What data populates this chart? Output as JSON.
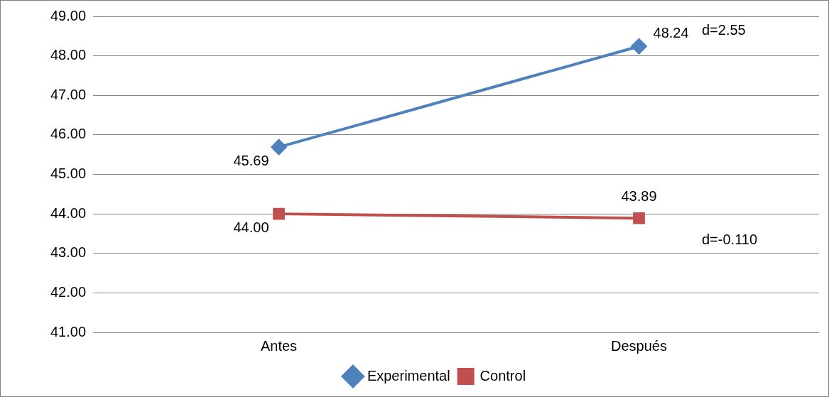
{
  "chart_data": {
    "type": "line",
    "categories": [
      "Antes",
      "Después"
    ],
    "series": [
      {
        "name": "Experimental",
        "color": "#4f81bd",
        "values": [
          45.69,
          48.24
        ],
        "value_labels": [
          "45.69",
          "48.24"
        ],
        "marker": "diamond"
      },
      {
        "name": "Control",
        "color": "#c0504d",
        "values": [
          44.0,
          43.89
        ],
        "value_labels": [
          "44.00",
          "43.89"
        ],
        "marker": "square"
      }
    ],
    "ylim": [
      41,
      49
    ],
    "yticks": [
      {
        "value": 41,
        "label": "41.00"
      },
      {
        "value": 42,
        "label": "42.00"
      },
      {
        "value": 43,
        "label": "43.00"
      },
      {
        "value": 44,
        "label": "44.00"
      },
      {
        "value": 45,
        "label": "45.00"
      },
      {
        "value": 46,
        "label": "46.00"
      },
      {
        "value": 47,
        "label": "47.00"
      },
      {
        "value": 48,
        "label": "48.00"
      },
      {
        "value": 49,
        "label": "49.00"
      }
    ],
    "grid": "y",
    "legend": "bottom",
    "line_style": "solid",
    "annotations": [
      "d=2.55",
      "d=-0.110"
    ]
  }
}
